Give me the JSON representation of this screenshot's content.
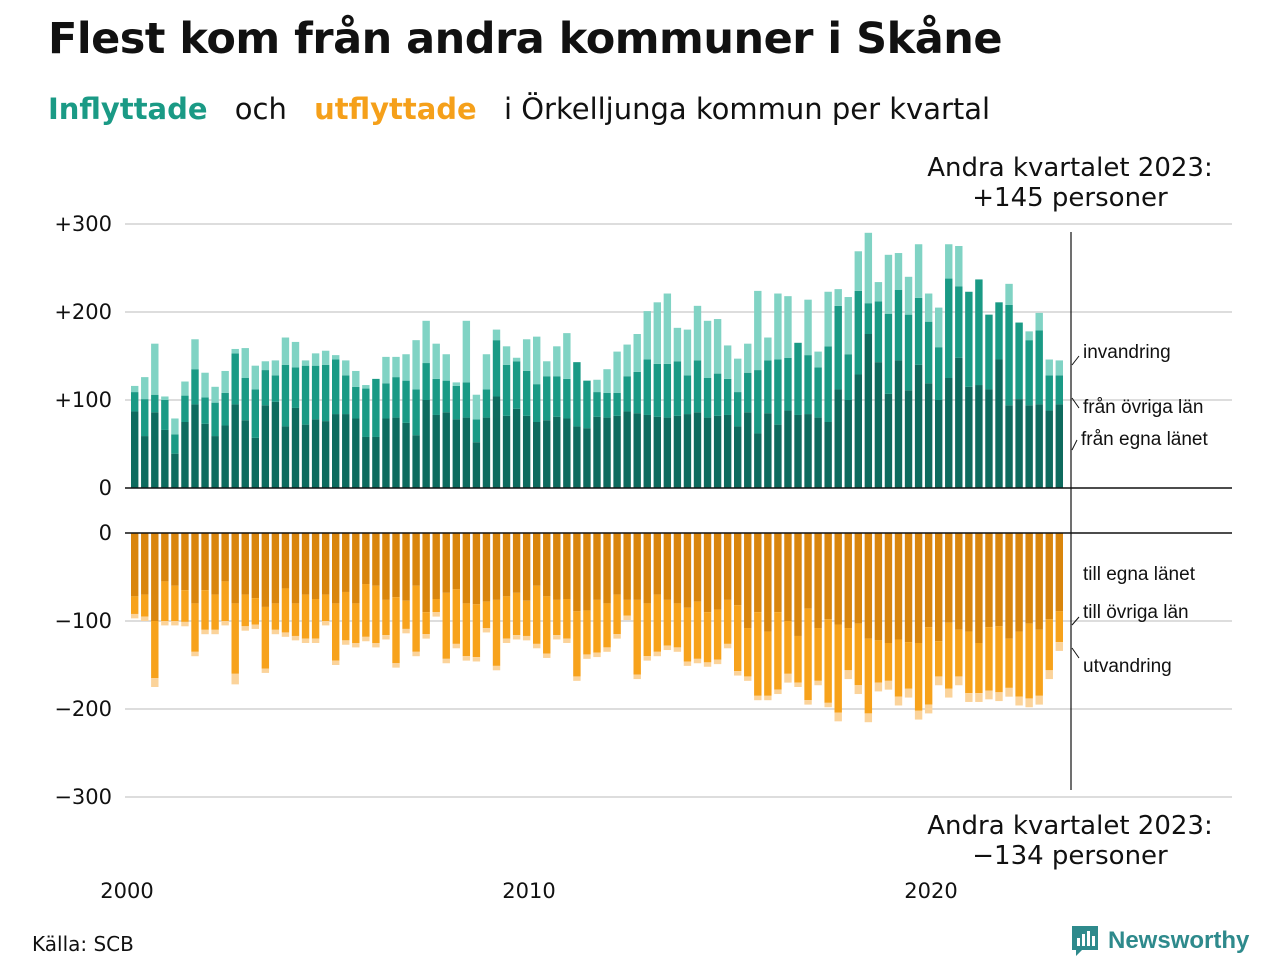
{
  "title": "Flest kom från andra kommuner i Skåne",
  "subtitle": {
    "in_label": "Inflyttade",
    "and_word": "och",
    "out_label": "utflyttade",
    "rest": "i Örkelljunga kommun per kvartal"
  },
  "annotations": {
    "top_line1": "Andra kvartalet 2023:",
    "top_line2": "+145 personer",
    "bottom_line1": "Andra kvartalet 2023:",
    "bottom_line2": "−134 personer"
  },
  "source": "Källa: SCB",
  "brand": "Newsworthy",
  "colors": {
    "in_own": "#0e6b5e",
    "in_other": "#1a9a85",
    "in_immig": "#80d3c4",
    "out_own": "#d9850c",
    "out_other": "#f7a21b",
    "out_emig": "#fbd39a",
    "grid": "#dddddd"
  },
  "chart_data": {
    "type": "bar",
    "stacked": true,
    "x_start": "2000 Q1",
    "x_end": "2023 Q2",
    "x_ticks": [
      "2000",
      "2010",
      "2020"
    ],
    "upper_panel": {
      "y_ticks": [
        "+300",
        "+200",
        "+100",
        "0"
      ],
      "ylim": [
        0,
        300
      ],
      "series": [
        {
          "name": "från egna länet",
          "values": [
            87,
            59,
            86,
            66,
            39,
            75,
            95,
            73,
            59,
            71,
            95,
            77,
            57,
            94,
            98,
            70,
            91,
            72,
            78,
            76,
            84,
            84,
            79,
            58,
            58,
            79,
            80,
            74,
            60,
            100,
            83,
            86,
            78,
            80,
            52,
            80,
            104,
            82,
            90,
            82,
            75,
            77,
            81,
            79,
            70,
            68,
            81,
            80,
            82,
            87,
            85,
            83,
            81,
            80,
            82,
            84,
            86,
            80,
            82,
            83,
            70,
            86,
            62,
            85,
            72,
            88,
            83,
            84,
            80,
            75,
            112,
            100,
            129,
            175,
            143,
            107,
            145,
            111,
            140,
            119,
            100,
            125,
            148,
            115,
            117,
            112,
            146,
            94,
            101,
            94,
            95,
            88,
            95
          ]
        },
        {
          "name": "från övriga län",
          "values": [
            22,
            42,
            20,
            34,
            22,
            30,
            40,
            30,
            38,
            37,
            58,
            48,
            55,
            40,
            30,
            70,
            46,
            67,
            61,
            64,
            62,
            44,
            36,
            55,
            66,
            40,
            46,
            48,
            52,
            42,
            41,
            36,
            38,
            40,
            26,
            32,
            64,
            58,
            54,
            51,
            43,
            50,
            46,
            45,
            73,
            54,
            28,
            28,
            26,
            40,
            47,
            63,
            60,
            61,
            62,
            44,
            59,
            45,
            48,
            41,
            39,
            45,
            72,
            60,
            74,
            60,
            82,
            67,
            57,
            86,
            95,
            52,
            95,
            35,
            69,
            91,
            80,
            86,
            76,
            70,
            60,
            113,
            81,
            108,
            120,
            85,
            65,
            114,
            87,
            74,
            84,
            40,
            33
          ]
        },
        {
          "name": "invandring",
          "values": [
            7,
            25,
            58,
            4,
            18,
            16,
            34,
            28,
            18,
            25,
            5,
            34,
            27,
            10,
            17,
            31,
            29,
            6,
            14,
            16,
            5,
            17,
            18,
            4,
            0,
            30,
            23,
            30,
            56,
            48,
            40,
            30,
            4,
            70,
            28,
            40,
            12,
            21,
            4,
            36,
            54,
            17,
            34,
            52,
            0,
            0,
            14,
            27,
            47,
            36,
            43,
            55,
            70,
            80,
            38,
            52,
            62,
            65,
            62,
            38,
            38,
            33,
            90,
            26,
            75,
            70,
            0,
            63,
            18,
            62,
            19,
            65,
            45,
            80,
            22,
            67,
            42,
            43,
            61,
            32,
            45,
            39,
            46,
            0,
            0,
            0,
            0,
            24,
            0,
            10,
            20,
            18,
            17
          ]
        }
      ]
    },
    "lower_panel": {
      "y_ticks": [
        "0",
        "−100",
        "−200",
        "−300"
      ],
      "ylim": [
        -300,
        0
      ],
      "series": [
        {
          "name": "till egna länet",
          "values": [
            -72,
            -70,
            -100,
            -55,
            -60,
            -65,
            -80,
            -65,
            -70,
            -55,
            -80,
            -70,
            -74,
            -84,
            -80,
            -63,
            -80,
            -70,
            -75,
            -70,
            -80,
            -67,
            -80,
            -58,
            -60,
            -76,
            -73,
            -77,
            -60,
            -90,
            -75,
            -68,
            -64,
            -80,
            -81,
            -78,
            -76,
            -72,
            -68,
            -77,
            -60,
            -72,
            -76,
            -75,
            -89,
            -88,
            -76,
            -80,
            -70,
            -76,
            -76,
            -80,
            -70,
            -76,
            -80,
            -85,
            -78,
            -90,
            -87,
            -76,
            -82,
            -108,
            -90,
            -112,
            -90,
            -100,
            -117,
            -86,
            -108,
            -98,
            -104,
            -108,
            -103,
            -120,
            -122,
            -125,
            -121,
            -124,
            -125,
            -107,
            -123,
            -102,
            -110,
            -112,
            -125,
            -107,
            -106,
            -120,
            -112,
            -103,
            -110,
            -98,
            -89
          ]
        },
        {
          "name": "till övriga län",
          "values": [
            -20,
            -25,
            -65,
            -45,
            -40,
            -36,
            -55,
            -45,
            -40,
            -45,
            -80,
            -36,
            -30,
            -70,
            -30,
            -50,
            -37,
            -50,
            -45,
            -30,
            -65,
            -55,
            -45,
            -60,
            -65,
            -40,
            -75,
            -32,
            -75,
            -25,
            -15,
            -75,
            -62,
            -60,
            -60,
            -30,
            -75,
            -48,
            -48,
            -40,
            -66,
            -65,
            -40,
            -45,
            -74,
            -50,
            -60,
            -50,
            -45,
            -18,
            -85,
            -60,
            -65,
            -52,
            -50,
            -61,
            -65,
            -57,
            -57,
            -50,
            -75,
            -55,
            -95,
            -73,
            -88,
            -60,
            -53,
            -104,
            -60,
            -95,
            -100,
            -48,
            -70,
            -85,
            -48,
            -43,
            -65,
            -53,
            -77,
            -88,
            -40,
            -75,
            -53,
            -70,
            -57,
            -72,
            -75,
            -56,
            -74,
            -85,
            -75,
            -58,
            -35
          ]
        },
        {
          "name": "utvandring",
          "values": [
            -5,
            -5,
            -10,
            -5,
            -5,
            -5,
            -5,
            -5,
            -5,
            -5,
            -12,
            -5,
            -5,
            -5,
            -5,
            -5,
            -5,
            -5,
            -5,
            -5,
            -5,
            -5,
            -5,
            -5,
            -5,
            -5,
            -5,
            -5,
            -5,
            -5,
            -5,
            -5,
            -5,
            -5,
            -5,
            -5,
            -5,
            -5,
            -5,
            -5,
            -5,
            -5,
            -5,
            -5,
            -5,
            -5,
            -5,
            -5,
            -5,
            -5,
            -5,
            -5,
            -5,
            -5,
            -5,
            -5,
            -5,
            -5,
            -5,
            -5,
            -5,
            -5,
            -5,
            -5,
            -5,
            -10,
            -5,
            -5,
            -5,
            -5,
            -10,
            -10,
            -10,
            -10,
            -10,
            -10,
            -10,
            -10,
            -10,
            -10,
            -10,
            -10,
            -10,
            -10,
            -10,
            -10,
            -10,
            -10,
            -10,
            -10,
            -10,
            -10,
            -10
          ]
        }
      ]
    }
  }
}
